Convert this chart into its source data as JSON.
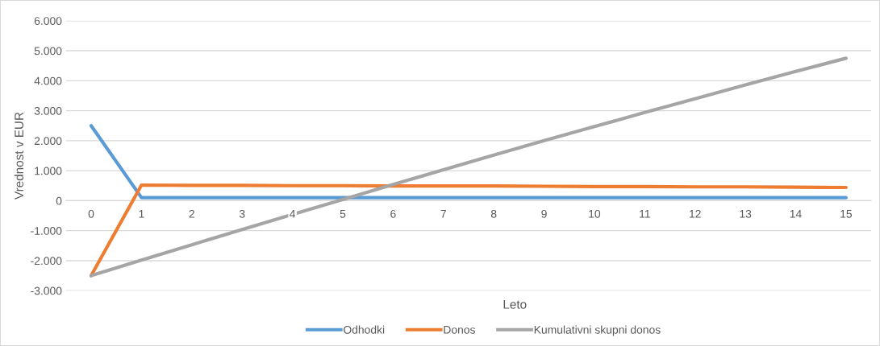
{
  "chart_data": {
    "type": "line",
    "xlabel": "Leto",
    "ylabel": "Vrednost v EUR",
    "categories": [
      "0",
      "1",
      "2",
      "3",
      "4",
      "5",
      "6",
      "7",
      "8",
      "9",
      "10",
      "11",
      "12",
      "13",
      "14",
      "15"
    ],
    "series": [
      {
        "name": "Odhodki",
        "color": "#5b9bd5",
        "values": [
          2500,
          100,
          100,
          100,
          100,
          100,
          100,
          100,
          100,
          100,
          100,
          100,
          100,
          100,
          100,
          100
        ]
      },
      {
        "name": "Donos",
        "color": "#ed7d31",
        "values": [
          -2500,
          520,
          510,
          510,
          500,
          500,
          490,
          490,
          490,
          480,
          470,
          470,
          460,
          460,
          450,
          440
        ]
      },
      {
        "name": "Kumulativni skupni donos",
        "color": "#a5a5a5",
        "values": [
          -2500,
          -1980,
          -1470,
          -960,
          -460,
          40,
          540,
          1030,
          1520,
          2000,
          2470,
          2940,
          3400,
          3860,
          4310,
          4750
        ]
      }
    ],
    "ylim": [
      -3000,
      6000
    ],
    "yticks": [
      {
        "value": -3000,
        "label": "-3.000"
      },
      {
        "value": -2000,
        "label": "-2.000"
      },
      {
        "value": -1000,
        "label": "-1.000"
      },
      0,
      {
        "value": 1000,
        "label": "1.000"
      },
      {
        "value": 2000,
        "label": "2.000"
      },
      {
        "value": 3000,
        "label": "3.000"
      },
      {
        "value": 4000,
        "label": "4.000"
      },
      {
        "value": 5000,
        "label": "5.000"
      },
      {
        "value": 6000,
        "label": "6.000"
      }
    ],
    "grid": "y",
    "legend": "bottom",
    "marker": "none",
    "line_style": "solid"
  }
}
